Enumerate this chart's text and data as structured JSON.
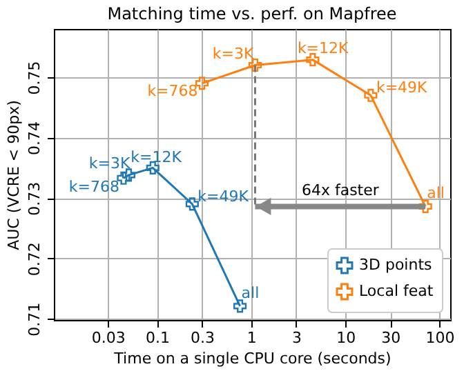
{
  "chart_data": {
    "type": "line",
    "title": "Matching time vs. perf. on Mapfree",
    "xlabel": "Time on a single CPU core (seconds)",
    "ylabel": "AUC (VCRE < 90px)",
    "log": "x",
    "xlim": [
      0.008,
      130
    ],
    "xticks": [
      0.03,
      0.1,
      0.3,
      1,
      3,
      10,
      30,
      100
    ],
    "ylim": [
      0.7098,
      0.758
    ],
    "yticks": [
      0.71,
      0.72,
      0.73,
      0.74,
      0.75
    ],
    "grid": true,
    "legend": "bottom right",
    "marker": "cross",
    "line_style": "solid",
    "series": [
      {
        "name": "3D points",
        "color": "#1f77b4",
        "x": [
          0.044,
          0.05,
          0.09,
          0.236,
          0.76
        ],
        "values": [
          0.7333,
          0.7338,
          0.735,
          0.729,
          0.7121
        ]
      },
      {
        "name": "Local feat",
        "color": "#ff7f0e",
        "x": [
          0.3,
          1.1,
          4.5,
          18.6,
          71
        ],
        "values": [
          0.749,
          0.752,
          0.7529,
          0.747,
          0.7286
        ]
      }
    ],
    "annotations": [
      {
        "text": "k=768",
        "x": 0.044,
        "y": 0.7333
      },
      {
        "text": "k=3K",
        "x": 0.05,
        "y": 0.7338
      },
      {
        "text": "k=12K",
        "x": 0.09,
        "y": 0.735
      },
      {
        "text": "k=49K",
        "x": 0.236,
        "y": 0.729
      },
      {
        "text": "all",
        "x": 0.76,
        "y": 0.7121
      },
      {
        "text": "k=768",
        "x": 0.3,
        "y": 0.749
      },
      {
        "text": "k=3K",
        "x": 1.1,
        "y": 0.752
      },
      {
        "text": "k=12K",
        "x": 4.5,
        "y": 0.7529
      },
      {
        "text": "k=49K",
        "x": 18.6,
        "y": 0.747
      },
      {
        "text": "all",
        "x": 71,
        "y": 0.7286
      },
      "64x faster"
    ]
  }
}
